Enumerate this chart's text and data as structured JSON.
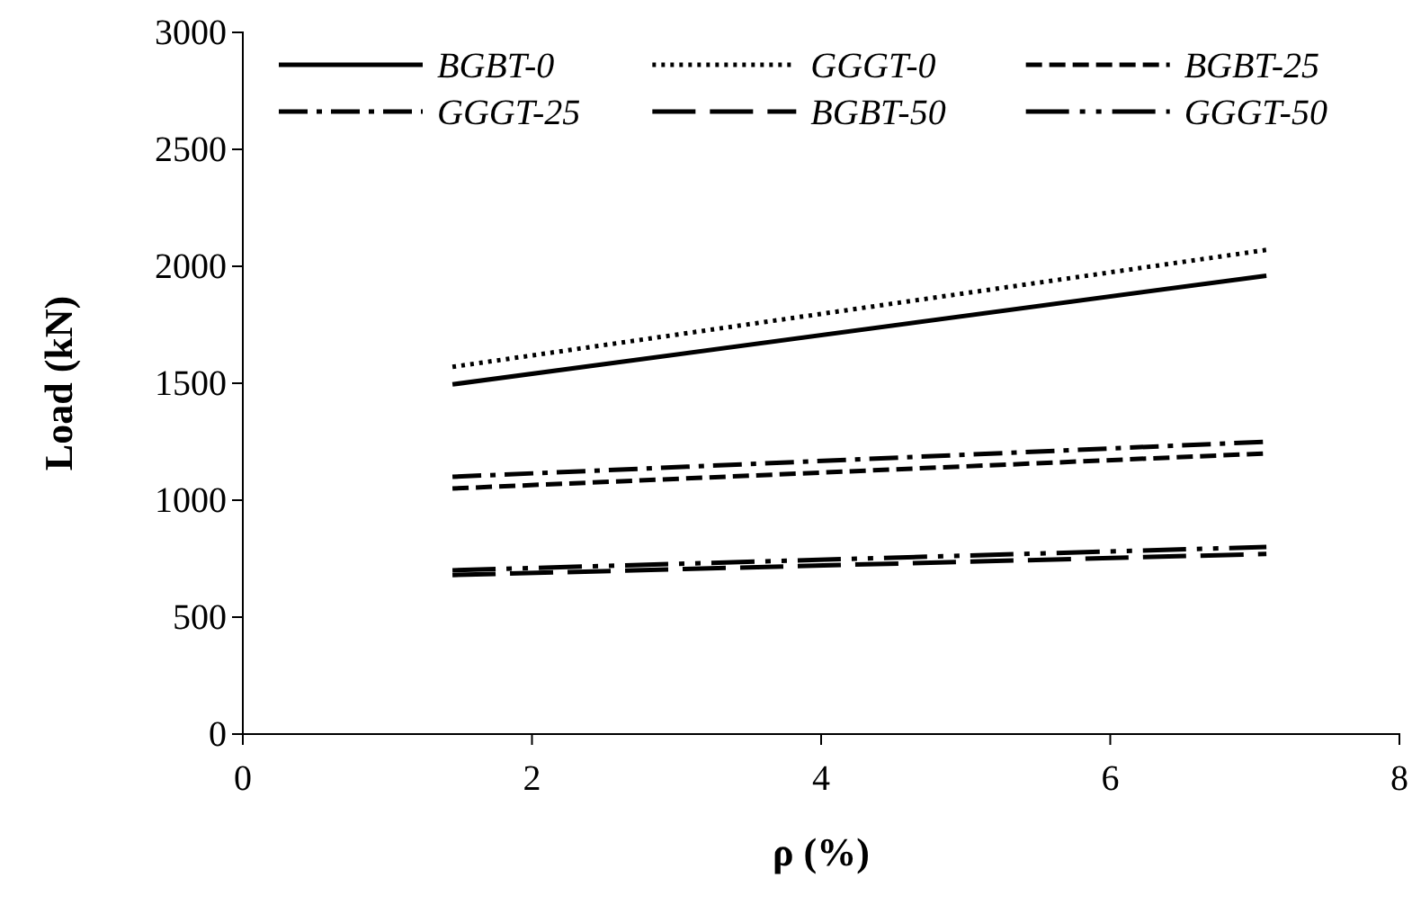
{
  "chart_data": {
    "type": "line",
    "xlabel": "ρ (%)",
    "ylabel": "Load (kN)",
    "xlim": [
      0,
      8
    ],
    "xticks": [
      0,
      2,
      4,
      6,
      8
    ],
    "ylim": [
      0,
      3000
    ],
    "yticks": [
      0,
      500,
      1000,
      1500,
      2000,
      2500,
      3000
    ],
    "x": [
      1.45,
      7.08
    ],
    "grid": false,
    "legend": "top",
    "marker": "none",
    "series": [
      {
        "name": "BGBT-0",
        "color": "#000000",
        "line_style": "solid",
        "values": [
          1495,
          1960
        ]
      },
      {
        "name": "GGGT-0",
        "color": "#000000",
        "line_style": "dotted",
        "values": [
          1570,
          2070
        ]
      },
      {
        "name": "BGBT-25",
        "color": "#000000",
        "line_style": "dashed",
        "values": [
          1050,
          1200
        ]
      },
      {
        "name": "GGGT-25",
        "color": "#000000",
        "line_style": "dashdot",
        "values": [
          1100,
          1250
        ]
      },
      {
        "name": "BGBT-50",
        "color": "#000000",
        "line_style": "longdash",
        "values": [
          680,
          770
        ]
      },
      {
        "name": "GGGT-50",
        "color": "#000000",
        "line_style": "dashdotdot",
        "values": [
          700,
          800
        ]
      }
    ]
  }
}
